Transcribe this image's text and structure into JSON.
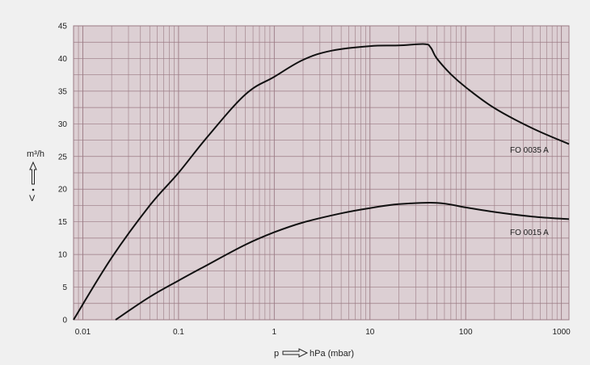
{
  "chart_data": {
    "type": "line",
    "x_scale": "log",
    "xlim": [
      0.008,
      1200
    ],
    "ylim": [
      0,
      45
    ],
    "x_ticks": [
      0.01,
      0.1,
      1,
      10,
      100,
      1000
    ],
    "x_tick_labels": [
      "0.01",
      "0.1",
      "1",
      "10",
      "100",
      "1000"
    ],
    "y_ticks": [
      0,
      5,
      10,
      15,
      20,
      25,
      30,
      35,
      40,
      45
    ],
    "y_tick_labels": [
      "0",
      "5",
      "10",
      "15",
      "20",
      "25",
      "30",
      "35",
      "40",
      "45"
    ],
    "xlabel_prefix": "p",
    "xlabel": "hPa (mbar)",
    "ylabel_unit": "m³/h",
    "ylabel_symbol": "V",
    "grid": true,
    "colors": {
      "background": "#f0f0f0",
      "plot_area": "#dccfd3",
      "grid": "#9a7a83",
      "line": "#111111"
    },
    "series": [
      {
        "name": "FO 0035 A",
        "x": [
          0.008,
          0.02,
          0.05,
          0.1,
          0.2,
          0.5,
          1,
          2,
          4,
          10,
          20,
          37,
          43,
          50,
          70,
          100,
          200,
          500,
          1200
        ],
        "y": [
          0,
          9.5,
          17.5,
          22.5,
          28,
          34.5,
          37.2,
          39.8,
          41.2,
          41.9,
          42.0,
          42.2,
          41.7,
          40.0,
          37.6,
          35.6,
          32.4,
          29.3,
          26.9
        ]
      },
      {
        "name": "FO 0015 A",
        "x": [
          0.022,
          0.05,
          0.1,
          0.2,
          0.5,
          1,
          2,
          5,
          10,
          20,
          50,
          100,
          200,
          500,
          1200
        ],
        "y": [
          0,
          3.5,
          6.0,
          8.4,
          11.5,
          13.4,
          14.9,
          16.3,
          17.1,
          17.7,
          17.9,
          17.2,
          16.5,
          15.8,
          15.4
        ]
      }
    ]
  }
}
